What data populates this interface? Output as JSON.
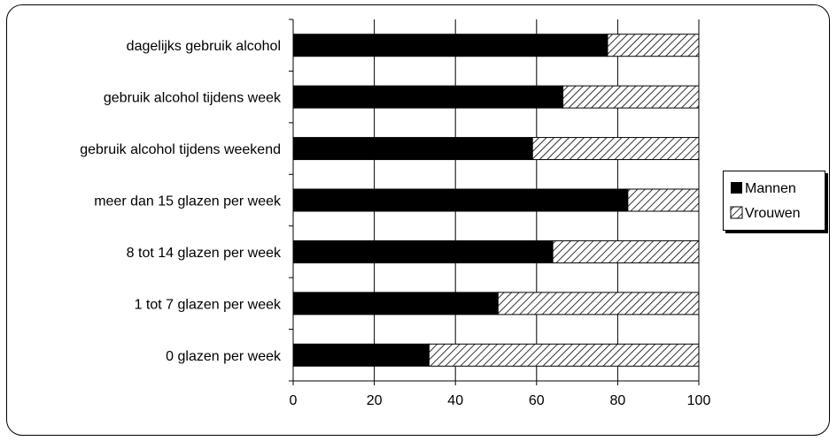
{
  "chart_data": {
    "type": "bar",
    "orientation": "horizontal",
    "stacked": true,
    "percent_stacked": true,
    "categories": [
      "dagelijks gebruik alcohol",
      "gebruik alcohol tijdens week",
      "gebruik alcohol tijdens weekend",
      "meer dan 15 glazen per week",
      "8 tot 14 glazen per week",
      "1 tot 7 glazen per week",
      "0 glazen per week"
    ],
    "series": [
      {
        "name": "Mannen",
        "values": [
          77.5,
          66.5,
          59,
          82.5,
          64,
          50.5,
          33.5
        ],
        "color": "#000000",
        "fill": "solid"
      },
      {
        "name": "Vrouwen",
        "values": [
          22.5,
          33.5,
          41,
          17.5,
          36,
          49.5,
          66.5
        ],
        "color": "#000000",
        "fill": "diagonal-hatch"
      }
    ],
    "xlim": [
      0,
      100
    ],
    "xticks": [
      "0",
      "20",
      "40",
      "60",
      "80",
      "100"
    ],
    "grid": "vertical",
    "legend": "right",
    "title": "",
    "xlabel": "",
    "ylabel": ""
  }
}
